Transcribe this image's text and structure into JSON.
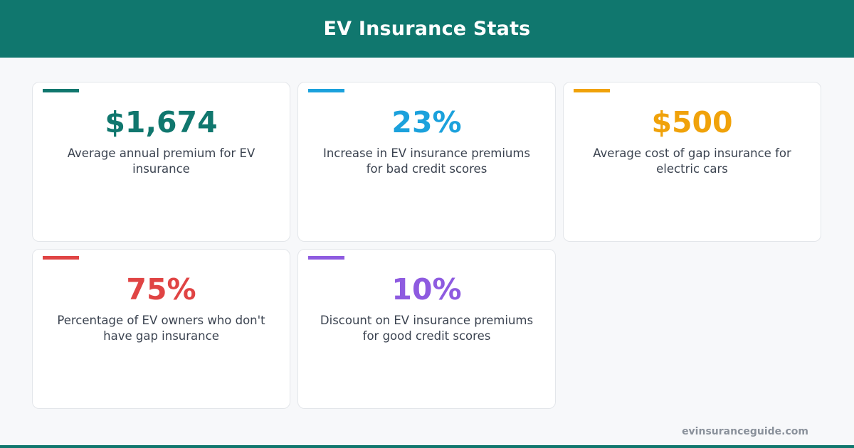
{
  "header": {
    "title": "EV Insurance Stats"
  },
  "cards": [
    {
      "value": "$1,674",
      "label": "Average annual premium for EV insurance",
      "color": "#10776e"
    },
    {
      "value": "23%",
      "label": "Increase in EV insurance premiums for bad credit scores",
      "color": "#1ba1dc"
    },
    {
      "value": "$500",
      "label": "Average cost of gap insurance for electric cars",
      "color": "#f0a20a"
    },
    {
      "value": "75%",
      "label": "Percentage of EV owners who don't have gap insurance",
      "color": "#e04444"
    },
    {
      "value": "10%",
      "label": "Discount on EV insurance premiums for good credit scores",
      "color": "#8e5be0"
    }
  ],
  "footer": {
    "site": "evinsuranceguide.com"
  }
}
